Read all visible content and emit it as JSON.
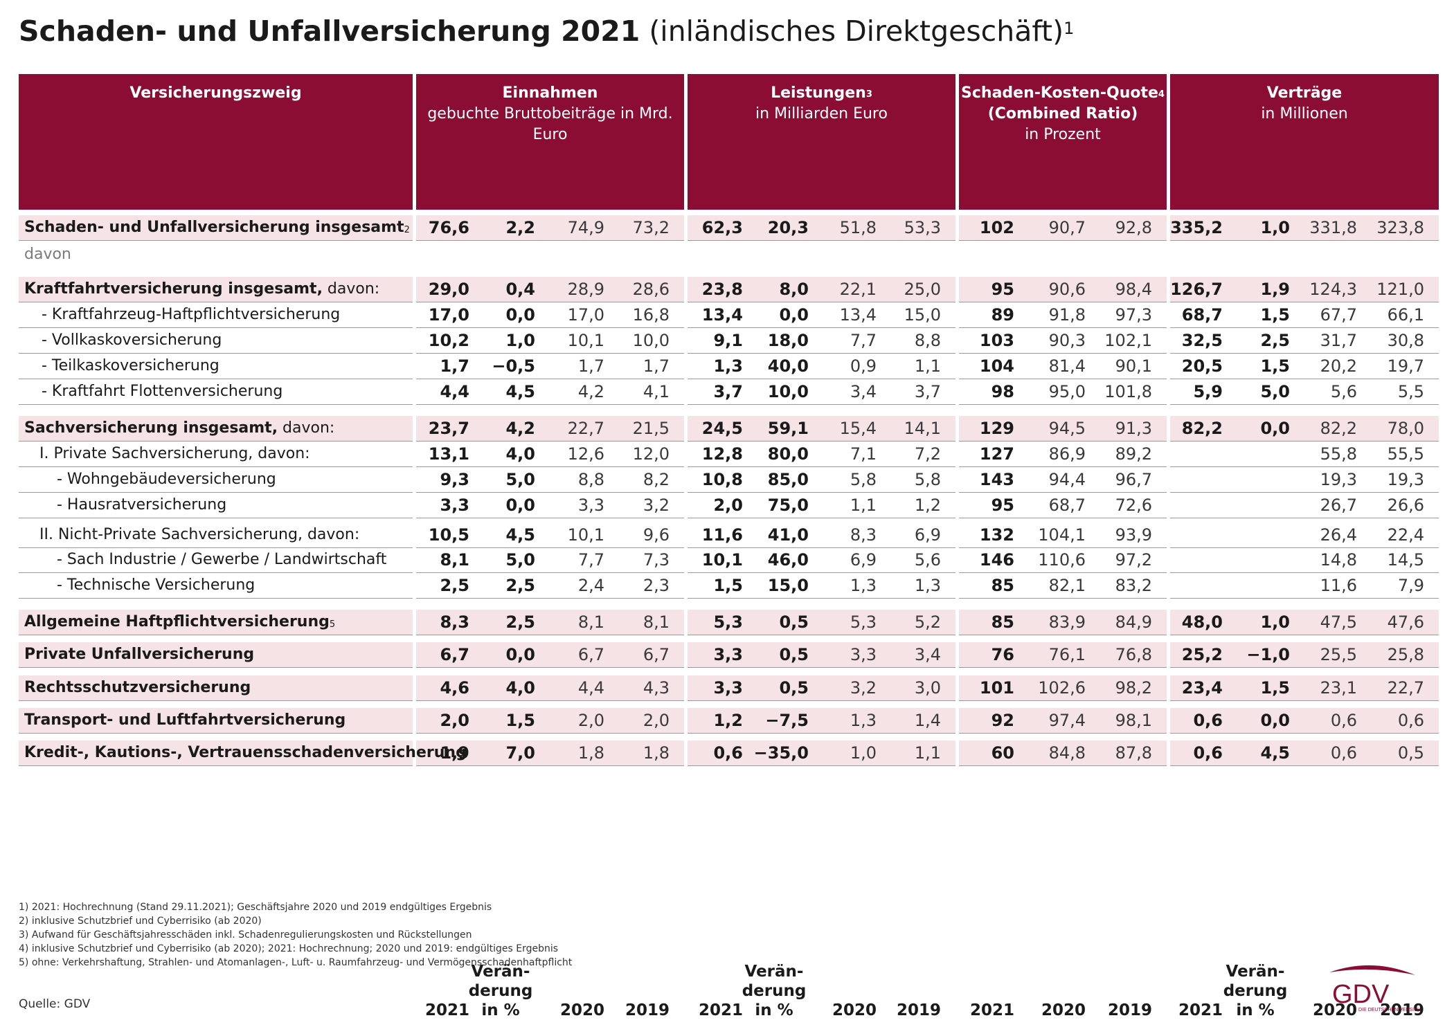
{
  "title": {
    "main": "Schaden- und Unfallversicherung 2021",
    "sub": "(inländisches Direktgeschäft)",
    "sup": "1"
  },
  "header": {
    "branch": "Versicherungszweig",
    "groups": [
      {
        "line1": "Einnahmen",
        "line1_sup": "",
        "line2": "gebuchte Bruttobeiträge in Mrd.  Euro",
        "line3": ""
      },
      {
        "line1": "Leistungen",
        "line1_sup": "3",
        "line2": "in Milliarden Euro",
        "line3": ""
      },
      {
        "line1": "Schaden-Kosten-Quote",
        "line1_sup": "4",
        "line2": "(Combined Ratio)",
        "line3": "in Prozent"
      },
      {
        "line1": "Verträge",
        "line1_sup": "",
        "line2": "in Millionen",
        "line3": ""
      }
    ],
    "year_2021": "2021",
    "year_2020": "2020",
    "year_2019": "2019",
    "change_l1": "Verän-",
    "change_l2": "derung",
    "change_l3": "in %"
  },
  "rows": [
    {
      "label": "Schaden- und Unfallversicherung insgesamt",
      "label_suffix": "",
      "sup": "2",
      "values": [
        "76,6",
        "2,2",
        "74,9",
        "73,2",
        "62,3",
        "20,3",
        "51,8",
        "53,3",
        "102",
        "90,7",
        "92,8",
        "335,2",
        "1,0",
        "331,8",
        "323,8"
      ]
    },
    {
      "label": "Kraftfahrtversicherung  insgesamt,",
      "label_suffix": " davon:",
      "sup": "",
      "values": [
        "29,0",
        "0,4",
        "28,9",
        "28,6",
        "23,8",
        "8,0",
        "22,1",
        "25,0",
        "95",
        "90,6",
        "98,4",
        "126,7",
        "1,9",
        "124,3",
        "121,0"
      ]
    },
    {
      "label": "- Kraftfahrzeug-Haftpflichtversicherung",
      "label_suffix": "",
      "sup": "",
      "values": [
        "17,0",
        "0,0",
        "17,0",
        "16,8",
        "13,4",
        "0,0",
        "13,4",
        "15,0",
        "89",
        "91,8",
        "97,3",
        "68,7",
        "1,5",
        "67,7",
        "66,1"
      ]
    },
    {
      "label": "- Vollkaskoversicherung",
      "label_suffix": "",
      "sup": "",
      "values": [
        "10,2",
        "1,0",
        "10,1",
        "10,0",
        "9,1",
        "18,0",
        "7,7",
        "8,8",
        "103",
        "90,3",
        "102,1",
        "32,5",
        "2,5",
        "31,7",
        "30,8"
      ]
    },
    {
      "label": "- Teilkaskoversicherung",
      "label_suffix": "",
      "sup": "",
      "values": [
        "1,7",
        "−0,5",
        "1,7",
        "1,7",
        "1,3",
        "40,0",
        "0,9",
        "1,1",
        "104",
        "81,4",
        "90,1",
        "20,5",
        "1,5",
        "20,2",
        "19,7"
      ]
    },
    {
      "label": "- Kraftfahrt Flottenversicherung",
      "label_suffix": "",
      "sup": "",
      "values": [
        "4,4",
        "4,5",
        "4,2",
        "4,1",
        "3,7",
        "10,0",
        "3,4",
        "3,7",
        "98",
        "95,0",
        "101,8",
        "5,9",
        "5,0",
        "5,6",
        "5,5"
      ]
    },
    {
      "label": "Sachversicherung insgesamt,",
      "label_suffix": " davon:",
      "sup": "",
      "values": [
        "23,7",
        "4,2",
        "22,7",
        "21,5",
        "24,5",
        "59,1",
        "15,4",
        "14,1",
        "129",
        "94,5",
        "91,3",
        "82,2",
        "0,0",
        "82,2",
        "78,0"
      ]
    },
    {
      "label": "I. Private Sachversicherung,",
      "label_suffix": " davon:",
      "sup": "",
      "values": [
        "13,1",
        "4,0",
        "12,6",
        "12,0",
        "12,8",
        "80,0",
        "7,1",
        "7,2",
        "127",
        "86,9",
        "89,2",
        "",
        "",
        "55,8",
        "55,5"
      ]
    },
    {
      "label": "- Wohngebäudeversicherung",
      "label_suffix": "",
      "sup": "",
      "values": [
        "9,3",
        "5,0",
        "8,8",
        "8,2",
        "10,8",
        "85,0",
        "5,8",
        "5,8",
        "143",
        "94,4",
        "96,7",
        "",
        "",
        "19,3",
        "19,3"
      ]
    },
    {
      "label": "- Hausratversicherung",
      "label_suffix": "",
      "sup": "",
      "values": [
        "3,3",
        "0,0",
        "3,3",
        "3,2",
        "2,0",
        "75,0",
        "1,1",
        "1,2",
        "95",
        "68,7",
        "72,6",
        "",
        "",
        "26,7",
        "26,6"
      ]
    },
    {
      "label": "II. Nicht-Private Sachversicherung,",
      "label_suffix": " davon:",
      "sup": "",
      "values": [
        "10,5",
        "4,5",
        "10,1",
        "9,6",
        "11,6",
        "41,0",
        "8,3",
        "6,9",
        "132",
        "104,1",
        "93,9",
        "",
        "",
        "26,4",
        "22,4"
      ]
    },
    {
      "label": "- Sach Industrie / Gewerbe / Landwirtschaft",
      "label_suffix": "",
      "sup": "",
      "values": [
        "8,1",
        "5,0",
        "7,7",
        "7,3",
        "10,1",
        "46,0",
        "6,9",
        "5,6",
        "146",
        "110,6",
        "97,2",
        "",
        "",
        "14,8",
        "14,5"
      ]
    },
    {
      "label": "- Technische Versicherung",
      "label_suffix": "",
      "sup": "",
      "values": [
        "2,5",
        "2,5",
        "2,4",
        "2,3",
        "1,5",
        "15,0",
        "1,3",
        "1,3",
        "85",
        "82,1",
        "83,2",
        "",
        "",
        "11,6",
        "7,9"
      ]
    },
    {
      "label": "Allgemeine  Haftpflichtversicherung",
      "label_suffix": "",
      "sup": "5",
      "values": [
        "8,3",
        "2,5",
        "8,1",
        "8,1",
        "5,3",
        "0,5",
        "5,3",
        "5,2",
        "85",
        "83,9",
        "84,9",
        "48,0",
        "1,0",
        "47,5",
        "47,6"
      ]
    },
    {
      "label": "Private Unfallversicherung",
      "label_suffix": "",
      "sup": "",
      "values": [
        "6,7",
        "0,0",
        "6,7",
        "6,7",
        "3,3",
        "0,5",
        "3,3",
        "3,4",
        "76",
        "76,1",
        "76,8",
        "25,2",
        "−1,0",
        "25,5",
        "25,8"
      ]
    },
    {
      "label": "Rechtsschutzversicherung",
      "label_suffix": "",
      "sup": "",
      "values": [
        "4,6",
        "4,0",
        "4,4",
        "4,3",
        "3,3",
        "0,5",
        "3,2",
        "3,0",
        "101",
        "102,6",
        "98,2",
        "23,4",
        "1,5",
        "23,1",
        "22,7"
      ]
    },
    {
      "label": "Transport- und Luftfahrtversicherung",
      "label_suffix": "",
      "sup": "",
      "values": [
        "2,0",
        "1,5",
        "2,0",
        "2,0",
        "1,2",
        "−7,5",
        "1,3",
        "1,4",
        "92",
        "97,4",
        "98,1",
        "0,6",
        "0,0",
        "0,6",
        "0,6"
      ]
    },
    {
      "label": "Kredit-, Kautions-, Vertrauensschadenversicherung",
      "label_suffix": "",
      "sup": "",
      "values": [
        "1,9",
        "7,0",
        "1,8",
        "1,8",
        "0,6",
        "−35,0",
        "1,0",
        "1,1",
        "60",
        "84,8",
        "87,8",
        "0,6",
        "4,5",
        "0,6",
        "0,5"
      ]
    }
  ],
  "davon_label": "davon",
  "footnotes": [
    "1)   2021: Hochrechnung (Stand 29.11.2021); Geschäftsjahre 2020 und 2019 endgültiges Ergebnis",
    "2)   inklusive Schutzbrief und Cyberrisiko (ab 2020)",
    "3)   Aufwand für Geschäftsjahresschäden inkl. Schadenregulierungskosten und Rückstellungen",
    "4)   inklusive Schutzbrief und Cyberrisiko (ab 2020); 2021: Hochrechnung; 2020 und 2019: endgültiges Ergebnis",
    "5)   ohne: Verkehrshaftung, Strahlen- und Atomanlagen-, Luft- u. Raumfahrzeug- und Vermögensschadenhaftpflicht"
  ],
  "source": "Quelle: GDV",
  "logo": {
    "text": "GDV",
    "tagline": "DIE DEUTSCHEN VERSICHERER",
    "color": "#8c0d33"
  }
}
